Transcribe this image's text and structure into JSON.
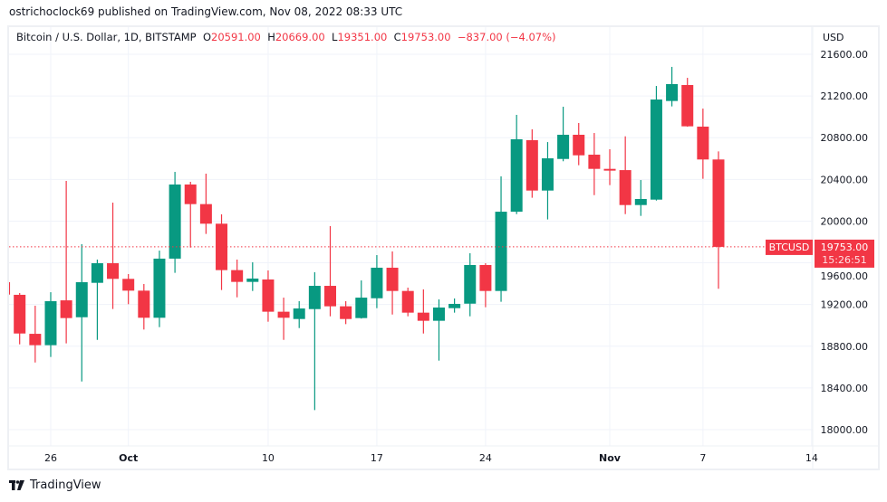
{
  "header": {
    "published": "ostrichoclock69 published on TradingView.com, Nov 08, 2022 08:33 UTC"
  },
  "legend": {
    "symbol": "Bitcoin / U.S. Dollar, 1D, BITSTAMP",
    "o_label": "O",
    "o": "20591.00",
    "h_label": "H",
    "h": "20669.00",
    "l_label": "L",
    "l": "19351.00",
    "c_label": "C",
    "c": "19753.00",
    "change": "−837.00 (−4.07%)"
  },
  "price_axis": {
    "currency": "USD",
    "last_symbol": "BTCUSD",
    "last_price": "19753.00",
    "countdown": "15:26:51"
  },
  "footer": {
    "brand": "TradingView"
  },
  "colors": {
    "up": "#089981",
    "down": "#f23645",
    "grid": "#f0f3fa"
  },
  "chart_data": {
    "type": "candlestick",
    "ylim": [
      18000,
      21600
    ],
    "y_ticks": [
      "21600.00",
      "21200.00",
      "20800.00",
      "20400.00",
      "20000.00",
      "19600.00",
      "19200.00",
      "18800.00",
      "18400.00",
      "18000.00"
    ],
    "x_ticks": [
      {
        "label": "26",
        "date": "2022-09-26",
        "bold": false
      },
      {
        "label": "Oct",
        "date": "2022-10-01",
        "bold": true
      },
      {
        "label": "10",
        "date": "2022-10-10",
        "bold": false
      },
      {
        "label": "17",
        "date": "2022-10-17",
        "bold": false
      },
      {
        "label": "24",
        "date": "2022-10-24",
        "bold": false
      },
      {
        "label": "Nov",
        "date": "2022-11-01",
        "bold": true
      },
      {
        "label": "7",
        "date": "2022-11-07",
        "bold": false
      },
      {
        "label": "14",
        "date": "2022-11-14",
        "bold": false
      }
    ],
    "grid": true,
    "last_price": 19753,
    "columns": [
      "date",
      "open",
      "high",
      "low",
      "close"
    ],
    "candles": [
      [
        "2022-09-23",
        19414,
        19420,
        19290,
        19295
      ],
      [
        "2022-09-24",
        19293,
        19310,
        18818,
        18922
      ],
      [
        "2022-09-25",
        18919,
        19188,
        18644,
        18810
      ],
      [
        "2022-09-26",
        18810,
        19318,
        18697,
        19232
      ],
      [
        "2022-09-27",
        19240,
        20386,
        18827,
        19070
      ],
      [
        "2022-09-28",
        19078,
        19778,
        18462,
        19414
      ],
      [
        "2022-09-29",
        19408,
        19631,
        18861,
        19596
      ],
      [
        "2022-09-30",
        19596,
        20177,
        19157,
        19446
      ],
      [
        "2022-10-01",
        19446,
        19492,
        19203,
        19333
      ],
      [
        "2022-10-02",
        19333,
        19397,
        18960,
        19073
      ],
      [
        "2022-10-03",
        19073,
        19717,
        18983,
        19640
      ],
      [
        "2022-10-04",
        19640,
        20472,
        19504,
        20351
      ],
      [
        "2022-10-05",
        20351,
        20377,
        19746,
        20163
      ],
      [
        "2022-10-06",
        20163,
        20455,
        19877,
        19975
      ],
      [
        "2022-10-07",
        19975,
        20065,
        19339,
        19530
      ],
      [
        "2022-10-08",
        19530,
        19631,
        19269,
        19417
      ],
      [
        "2022-10-09",
        19417,
        19605,
        19330,
        19449
      ],
      [
        "2022-10-10",
        19440,
        19527,
        19035,
        19131
      ],
      [
        "2022-10-11",
        19131,
        19266,
        18861,
        19073
      ],
      [
        "2022-10-12",
        19061,
        19232,
        18974,
        19162
      ],
      [
        "2022-10-13",
        19156,
        19509,
        18188,
        19379
      ],
      [
        "2022-10-14",
        19379,
        19952,
        19087,
        19183
      ],
      [
        "2022-10-15",
        19183,
        19232,
        19012,
        19061
      ],
      [
        "2022-10-16",
        19070,
        19431,
        19065,
        19266
      ],
      [
        "2022-10-17",
        19260,
        19674,
        19165,
        19553
      ],
      [
        "2022-10-18",
        19553,
        19709,
        19104,
        19330
      ],
      [
        "2022-10-19",
        19330,
        19362,
        19087,
        19122
      ],
      [
        "2022-10-20",
        19122,
        19345,
        18922,
        19044
      ],
      [
        "2022-10-21",
        19044,
        19249,
        18662,
        19171
      ],
      [
        "2022-10-22",
        19165,
        19258,
        19122,
        19206
      ],
      [
        "2022-10-23",
        19208,
        19692,
        19087,
        19579
      ],
      [
        "2022-10-24",
        19579,
        19596,
        19174,
        19330
      ],
      [
        "2022-10-25",
        19330,
        20429,
        19226,
        20090
      ],
      [
        "2022-10-26",
        20090,
        21019,
        20067,
        20785
      ],
      [
        "2022-10-27",
        20776,
        20880,
        20224,
        20293
      ],
      [
        "2022-10-28",
        20293,
        20758,
        20016,
        20602
      ],
      [
        "2022-10-29",
        20596,
        21097,
        20574,
        20828
      ],
      [
        "2022-10-30",
        20828,
        20941,
        20536,
        20631
      ],
      [
        "2022-10-31",
        20637,
        20845,
        20249,
        20501
      ],
      [
        "2022-11-01",
        20501,
        20689,
        20345,
        20484
      ],
      [
        "2022-11-02",
        20489,
        20813,
        20067,
        20154
      ],
      [
        "2022-11-03",
        20154,
        20394,
        20050,
        20212
      ],
      [
        "2022-11-04",
        20206,
        21296,
        20197,
        21166
      ],
      [
        "2022-11-05",
        21152,
        21479,
        21100,
        21314
      ],
      [
        "2022-11-06",
        21305,
        21374,
        20905,
        20909
      ],
      [
        "2022-11-07",
        20906,
        21079,
        20406,
        20591
      ],
      [
        "2022-11-08",
        20591,
        20669,
        19351,
        19753
      ]
    ]
  }
}
